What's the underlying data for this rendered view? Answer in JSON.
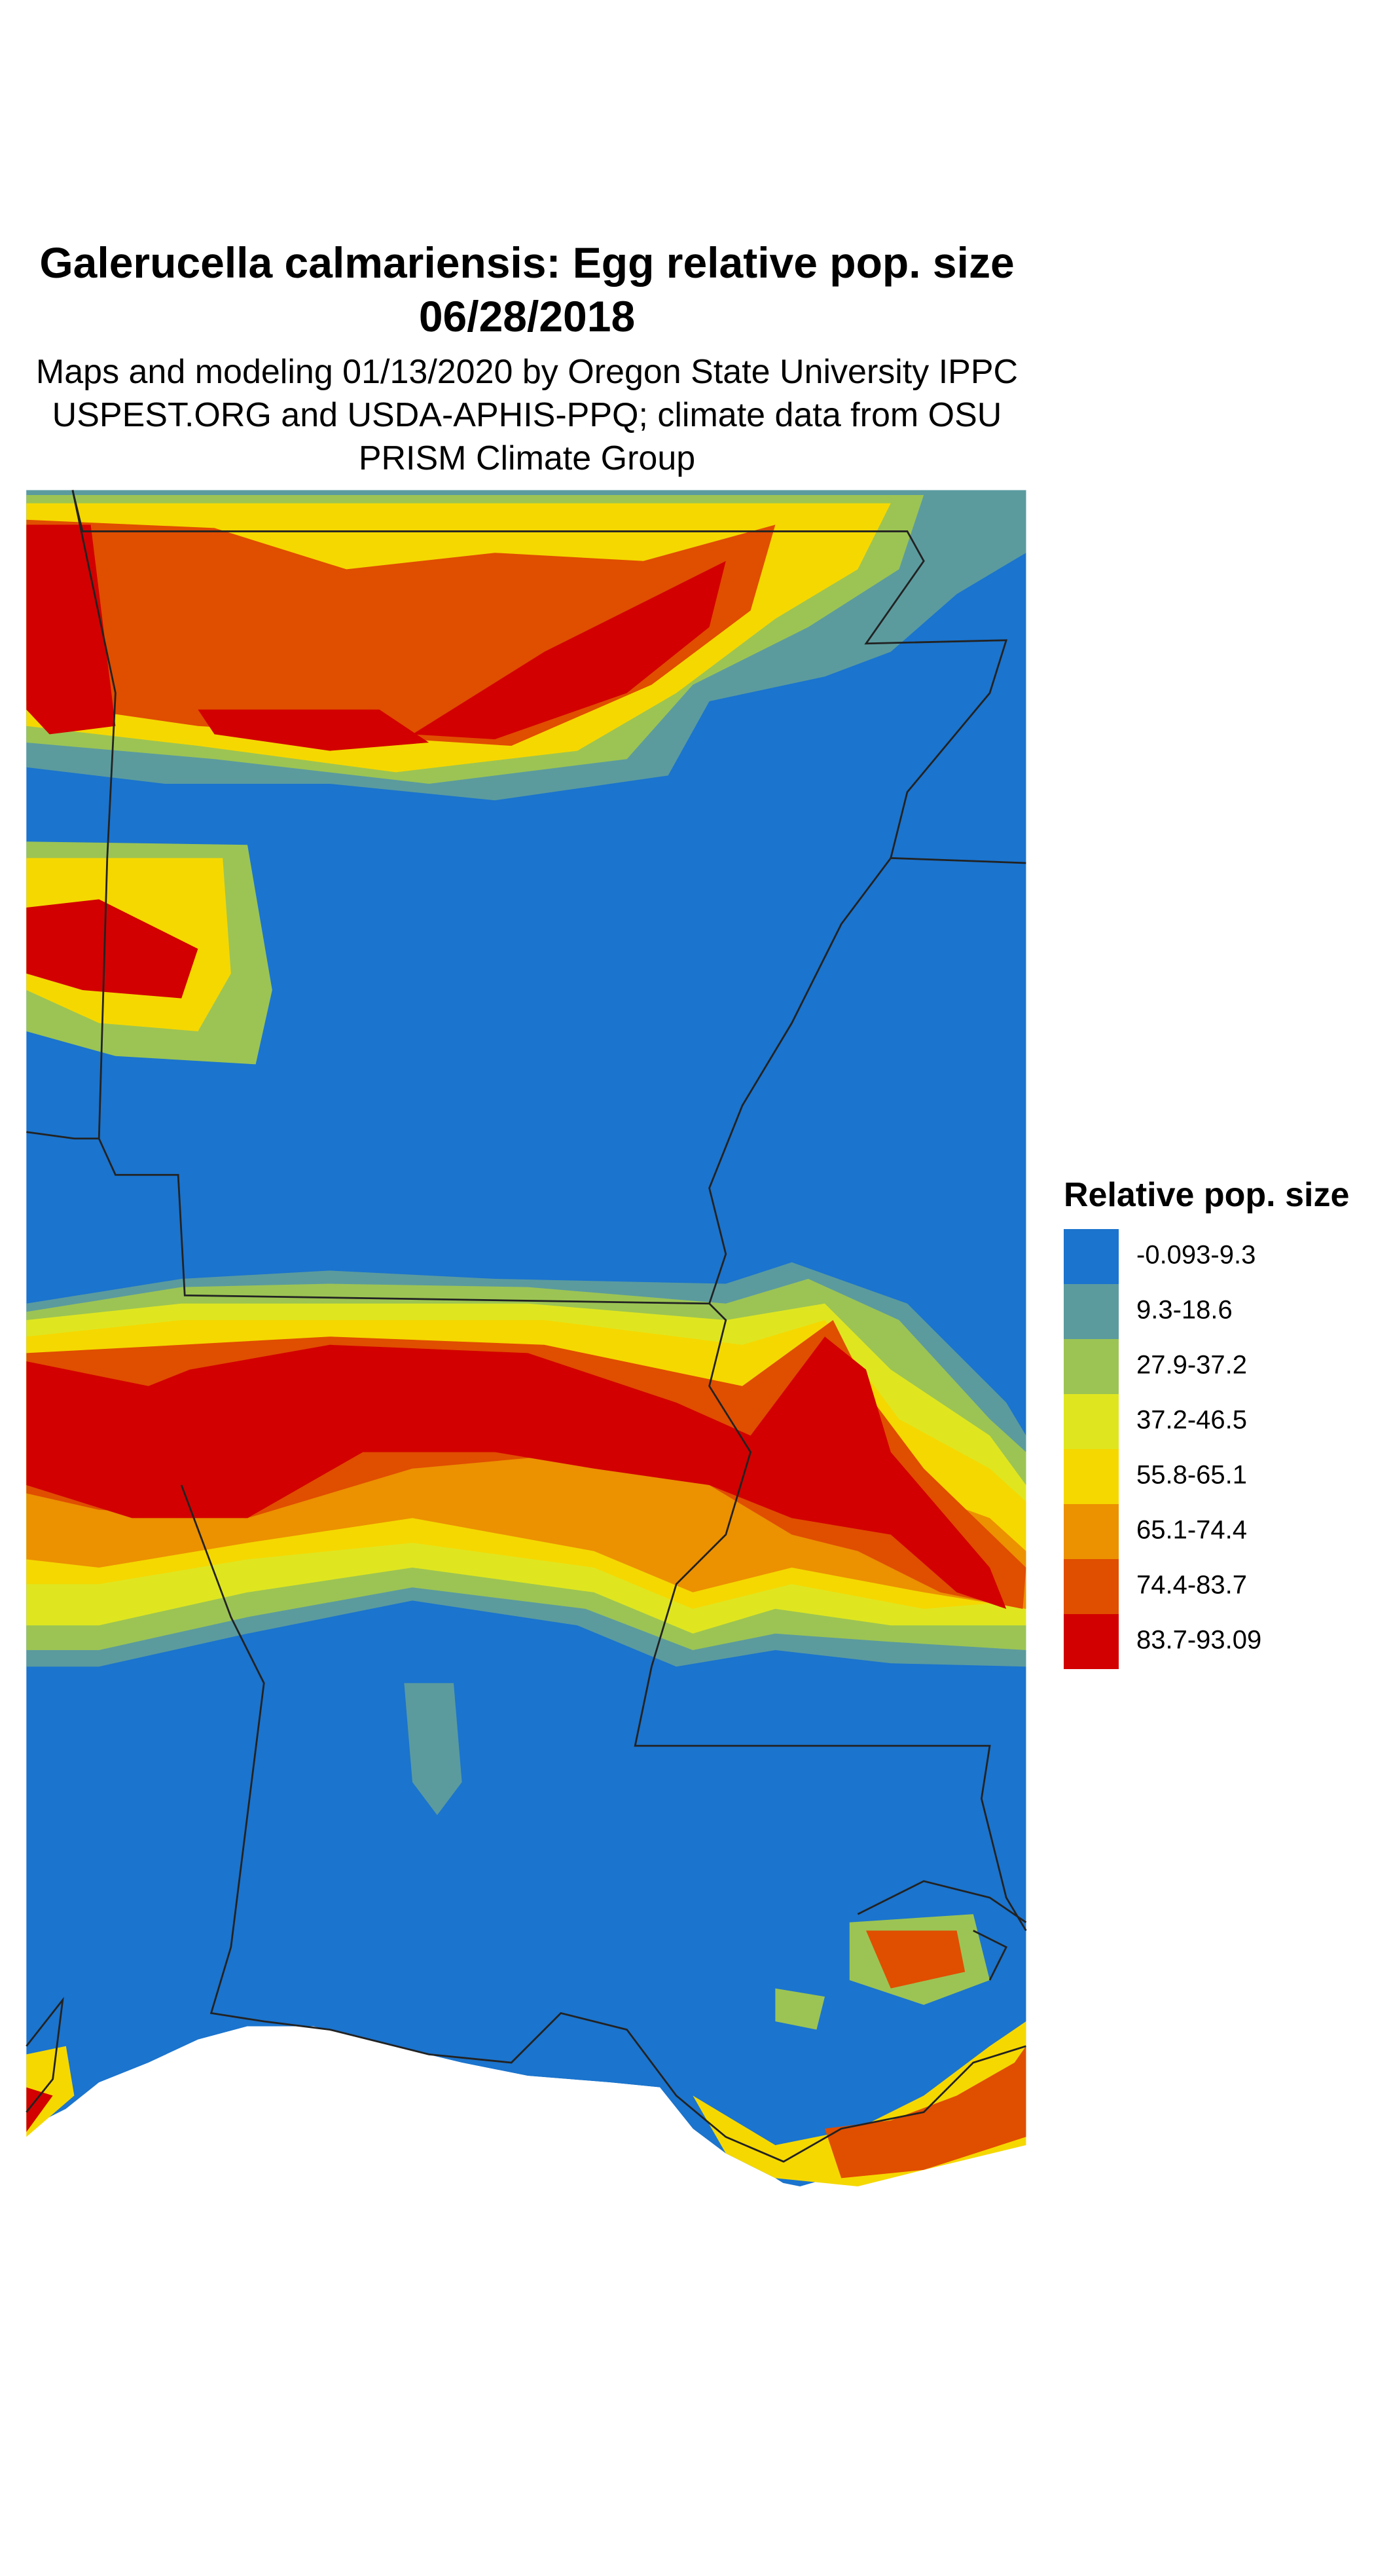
{
  "title": "Galerucella calmariensis: Egg relative pop. size 06/28/2018",
  "subtitle": "Maps and modeling 01/13/2020 by Oregon State University IPPC USPEST.ORG and USDA-APHIS-PPQ; climate data from OSU PRISM Climate Group",
  "legend": {
    "title": "Relative pop. size",
    "items": [
      {
        "label": "-0.093-9.3",
        "color": "#1b74cd"
      },
      {
        "label": "9.3-18.6",
        "color": "#5b9b9e"
      },
      {
        "label": "27.9-37.2",
        "color": "#9cc454"
      },
      {
        "label": "37.2-46.5",
        "color": "#dfe620"
      },
      {
        "label": "55.8-65.1",
        "color": "#f5d800"
      },
      {
        "label": "65.1-74.4",
        "color": "#ec9100"
      },
      {
        "label": "74.4-83.7",
        "color": "#e04e00"
      },
      {
        "label": "83.7-93.09",
        "color": "#d20000"
      }
    ]
  }
}
